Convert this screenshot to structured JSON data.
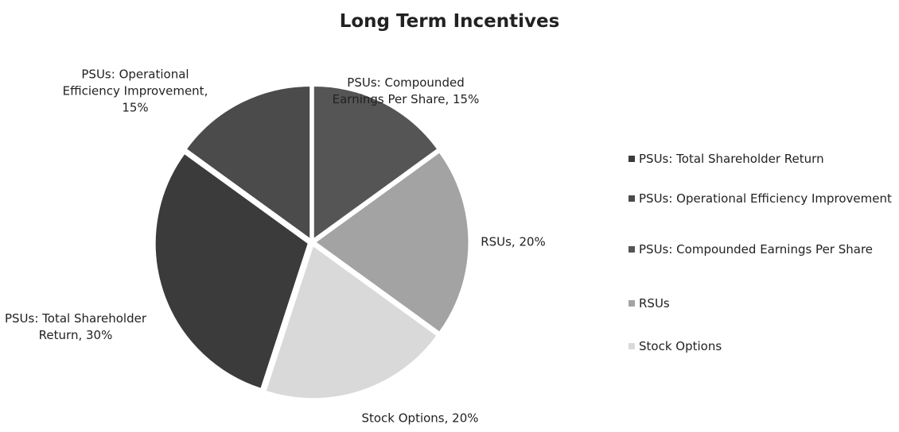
{
  "chart_data": {
    "type": "pie",
    "title": "Long Term Incentives",
    "labels": [
      "PSUs: Total Shareholder Return",
      "PSUs: Operational Efficiency Improvement",
      "PSUs: Compounded Earnings Per Share",
      "RSUs",
      "Stock Options"
    ],
    "values": [
      30,
      15,
      15,
      20,
      20
    ],
    "value_labels": [
      "PSUs: Total Shareholder Return, 30%",
      "PSUs: Operational Efficiency Improvement, 15%",
      "PSUs: Compounded Earnings Per Share, 15%",
      "RSUs, 20%",
      "Stock Options, 20%"
    ],
    "colors": [
      "#3b3b3b",
      "#4b4b4b",
      "#555555",
      "#a3a3a3",
      "#d9d9d9"
    ],
    "legend": "right"
  }
}
